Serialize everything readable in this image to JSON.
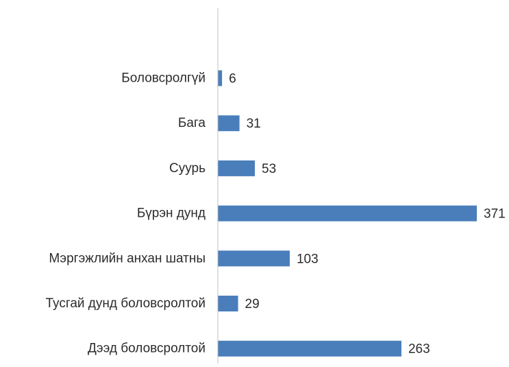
{
  "chart_data": {
    "type": "bar",
    "orientation": "horizontal",
    "categories": [
      "Боловсролгүй",
      "Бага",
      "Суурь",
      "Бүрэн дунд",
      "Мэргэжлийн анхан шатны",
      "Тусгай дунд боловсролтой",
      "Дээд боловсролтой"
    ],
    "values": [
      6,
      31,
      53,
      371,
      103,
      29,
      263
    ],
    "data_labels": [
      "6",
      "31",
      "53",
      "371",
      "103",
      "29",
      "263"
    ],
    "bar_color": "#4a7ebb",
    "axis_color": "#bfbfbf",
    "xlim": [
      0,
      371
    ],
    "grid": false,
    "legend": "none"
  }
}
